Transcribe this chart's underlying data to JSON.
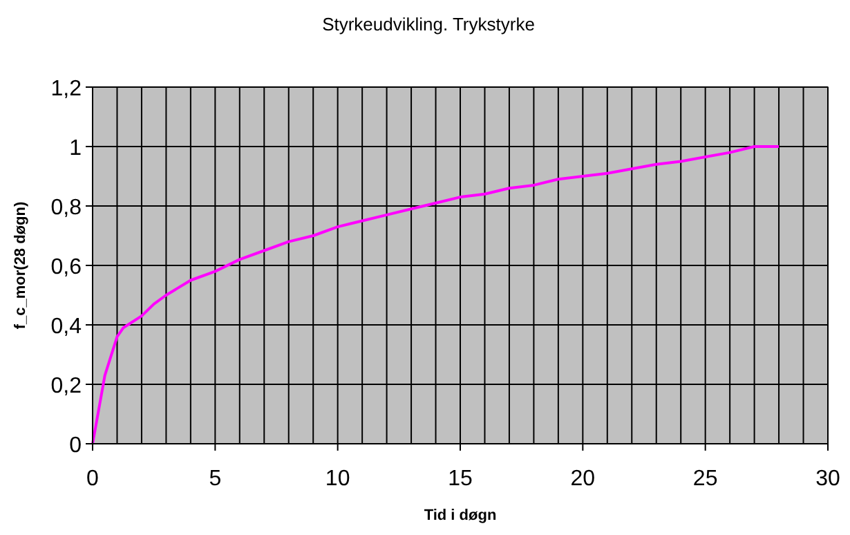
{
  "chart_data": {
    "type": "line",
    "title": "Styrkeudvikling. Trykstyrke",
    "xlabel": "Tid i døgn",
    "ylabel": "f_c_mor(28 døgn)",
    "x": [
      0,
      0.5,
      1,
      1.25,
      2,
      2.5,
      3,
      4,
      5,
      6,
      7,
      8,
      9,
      10,
      11,
      12,
      13,
      14,
      15,
      16,
      17,
      18,
      19,
      20,
      21,
      22,
      23,
      24,
      25,
      26,
      27,
      28
    ],
    "series": [
      {
        "color": "#ff00ff",
        "values": [
          0,
          0.23,
          0.36,
          0.39,
          0.43,
          0.47,
          0.5,
          0.55,
          0.58,
          0.62,
          0.65,
          0.68,
          0.7,
          0.73,
          0.75,
          0.77,
          0.79,
          0.81,
          0.83,
          0.84,
          0.86,
          0.87,
          0.89,
          0.9,
          0.91,
          0.925,
          0.94,
          0.95,
          0.965,
          0.98,
          1,
          1
        ]
      }
    ],
    "xlim": [
      0,
      30
    ],
    "xticks": [
      0,
      {
        "value": 1,
        "label": null
      },
      {
        "value": 2,
        "label": null
      },
      {
        "value": 3,
        "label": null
      },
      {
        "value": 4,
        "label": null
      },
      5,
      {
        "value": 6,
        "label": null
      },
      {
        "value": 7,
        "label": null
      },
      {
        "value": 8,
        "label": null
      },
      {
        "value": 9,
        "label": null
      },
      10,
      {
        "value": 11,
        "label": null
      },
      {
        "value": 12,
        "label": null
      },
      {
        "value": 13,
        "label": null
      },
      {
        "value": 14,
        "label": null
      },
      15,
      {
        "value": 16,
        "label": null
      },
      {
        "value": 17,
        "label": null
      },
      {
        "value": 18,
        "label": null
      },
      {
        "value": 19,
        "label": null
      },
      20,
      {
        "value": 21,
        "label": null
      },
      {
        "value": 22,
        "label": null
      },
      {
        "value": 23,
        "label": null
      },
      {
        "value": 24,
        "label": null
      },
      25,
      {
        "value": 26,
        "label": null
      },
      {
        "value": 27,
        "label": null
      },
      {
        "value": 28,
        "label": null
      },
      {
        "value": 29,
        "label": null
      },
      30
    ],
    "ylim": [
      0,
      1.2
    ],
    "yticks": [
      0,
      {
        "value": 0.2,
        "label": "0,2"
      },
      {
        "value": 0.4,
        "label": "0,4"
      },
      {
        "value": 0.6,
        "label": "0,6"
      },
      {
        "value": 0.8,
        "label": "0,8"
      },
      1,
      {
        "value": 1.2,
        "label": "1,2"
      }
    ],
    "grid": true,
    "marker": "none",
    "line_style": "solid"
  }
}
